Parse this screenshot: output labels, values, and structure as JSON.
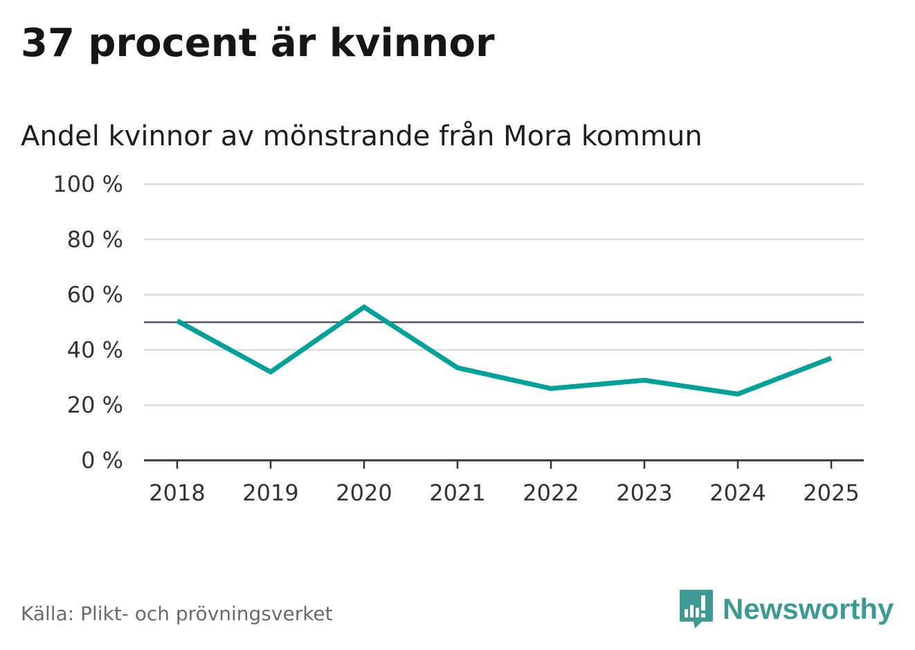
{
  "header": {
    "title": "37 procent är kvinnor",
    "subtitle": "Andel kvinnor av mönstrande från Mora kommun"
  },
  "footer": {
    "source": "Källa: Plikt- och prövningsverket",
    "logo_text": "Newsworthy",
    "logo_icon": "bar-chart-speech-bubble-icon"
  },
  "colors": {
    "series": "#00a198",
    "reference": "#555560",
    "grid": "#dcdcdc",
    "axis": "#333333",
    "logo": "#3d9a93"
  },
  "chart_data": {
    "type": "line",
    "title": "37 procent är kvinnor",
    "subtitle": "Andel kvinnor av mönstrande från Mora kommun",
    "x": [
      "2018",
      "2019",
      "2020",
      "2021",
      "2022",
      "2023",
      "2024",
      "2025"
    ],
    "series": [
      {
        "values": [
          50.5,
          32,
          55.5,
          33.5,
          26,
          29,
          24,
          37
        ]
      }
    ],
    "reference_line": 50,
    "ylim": [
      0,
      100
    ],
    "yticks": [
      0,
      20,
      40,
      60,
      80,
      100
    ],
    "ytick_labels": [
      "0 %",
      "20 %",
      "40 %",
      "60 %",
      "80 %",
      "100 %"
    ],
    "xlabel": "",
    "ylabel": "",
    "grid": true,
    "legend": "none"
  }
}
